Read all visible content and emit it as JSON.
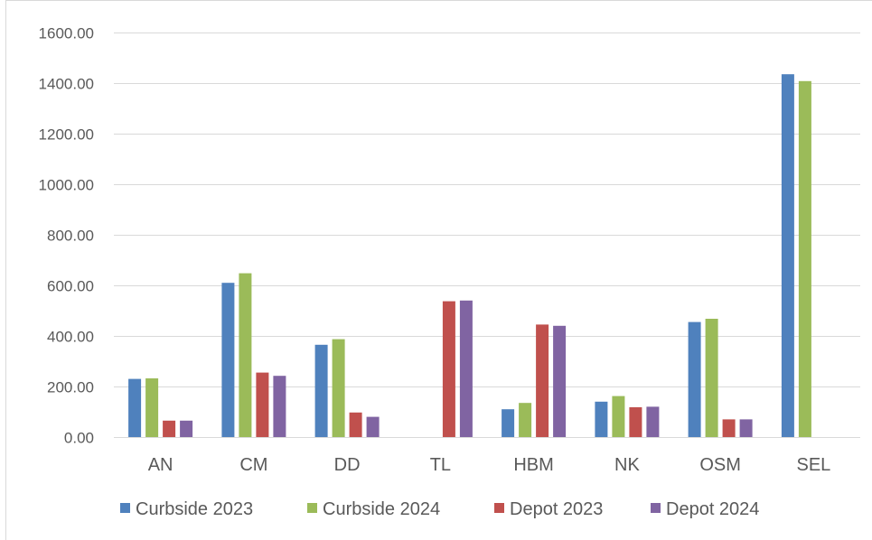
{
  "chart_data": {
    "type": "bar",
    "title": "",
    "xlabel": "",
    "ylabel": "",
    "ylim": [
      0,
      1600
    ],
    "yticks": [
      "0.00",
      "200.00",
      "400.00",
      "600.00",
      "800.00",
      "1000.00",
      "1200.00",
      "1400.00",
      "1600.00"
    ],
    "grid": true,
    "legend_position": "bottom",
    "categories": [
      "AN",
      "CM",
      "DD",
      "TL",
      "HBM",
      "NK",
      "OSM",
      "SEL"
    ],
    "series": [
      {
        "name": "Curbside 2023",
        "color": "#4f81bd",
        "values": [
          230,
          610,
          365,
          0,
          110,
          140,
          455,
          1435
        ]
      },
      {
        "name": "Curbside 2024",
        "color": "#9bbb59",
        "values": [
          232,
          648,
          387,
          0,
          135,
          162,
          468,
          1408
        ]
      },
      {
        "name": "Depot 2023",
        "color": "#c0504d",
        "values": [
          65,
          255,
          97,
          537,
          445,
          118,
          70,
          0
        ]
      },
      {
        "name": "Depot 2024",
        "color": "#8064a2",
        "values": [
          65,
          242,
          80,
          540,
          440,
          120,
          70,
          0
        ]
      }
    ]
  }
}
